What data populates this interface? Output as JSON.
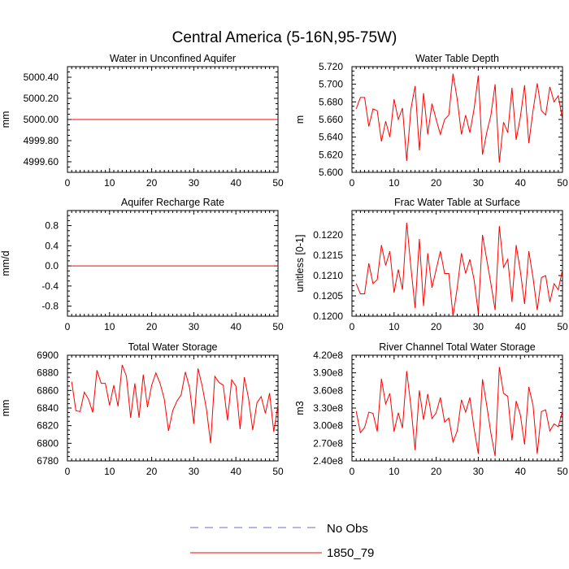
{
  "figure": {
    "title": "Central America (5-16N,95-75W)"
  },
  "legend": {
    "items": [
      {
        "label": "No Obs",
        "color": "#6b6bd6",
        "dash": "dashed"
      },
      {
        "label": "1850_79",
        "color": "#ff0000",
        "dash": "solid"
      }
    ]
  },
  "chart_data": [
    {
      "id": "water-unconfined-aquifer",
      "type": "line",
      "title": "Water in Unconfined Aquifer",
      "xlabel": "",
      "ylabel": "mm",
      "xlim": [
        0,
        50
      ],
      "ylim": [
        4999.5,
        5000.5
      ],
      "xticks": [
        0,
        10,
        20,
        30,
        40,
        50
      ],
      "yticks": [
        4999.6,
        4999.8,
        5000.0,
        5000.2,
        5000.4
      ],
      "ytick_labels": [
        "4999.60",
        "4999.80",
        "5000.00",
        "5000.20",
        "5000.40"
      ],
      "series": [
        {
          "name": "1850_79",
          "color": "#ff0000",
          "x_start": 1,
          "x_end": 50,
          "constant": 5000.0
        }
      ]
    },
    {
      "id": "water-table-depth",
      "type": "line",
      "title": "Water Table Depth",
      "xlabel": "",
      "ylabel": "m",
      "xlim": [
        0,
        50
      ],
      "ylim": [
        5.6,
        5.72
      ],
      "xticks": [
        0,
        10,
        20,
        30,
        40,
        50
      ],
      "yticks": [
        5.6,
        5.62,
        5.64,
        5.66,
        5.68,
        5.7,
        5.72
      ],
      "ytick_labels": [
        "5.600",
        "5.620",
        "5.640",
        "5.660",
        "5.680",
        "5.700",
        "5.720"
      ],
      "series": [
        {
          "name": "1850_79",
          "color": "#ff0000",
          "x_start": 1,
          "values": [
            5.672,
            5.685,
            5.685,
            5.652,
            5.672,
            5.67,
            5.635,
            5.658,
            5.64,
            5.683,
            5.66,
            5.673,
            5.613,
            5.672,
            5.698,
            5.625,
            5.69,
            5.643,
            5.678,
            5.66,
            5.643,
            5.66,
            5.665,
            5.712,
            5.683,
            5.643,
            5.665,
            5.645,
            5.672,
            5.71,
            5.62,
            5.645,
            5.665,
            5.7,
            5.611,
            5.657,
            5.645,
            5.696,
            5.637,
            5.663,
            5.699,
            5.633,
            5.67,
            5.701,
            5.67,
            5.665,
            5.697,
            5.68,
            5.687,
            5.66
          ]
        }
      ]
    },
    {
      "id": "aquifer-recharge-rate",
      "type": "line",
      "title": "Aquifer Recharge Rate",
      "xlabel": "",
      "ylabel": "mm/d",
      "xlim": [
        0,
        50
      ],
      "ylim": [
        -1.0,
        1.1
      ],
      "xticks": [
        0,
        10,
        20,
        30,
        40,
        50
      ],
      "yticks": [
        -0.8,
        -0.4,
        0.0,
        0.4,
        0.8
      ],
      "ytick_labels": [
        "-0.8",
        "-0.4",
        "0.0",
        "0.4",
        "0.8"
      ],
      "series": [
        {
          "name": "1850_79",
          "color": "#ff0000",
          "x_start": 1,
          "x_end": 50,
          "constant": 0.0
        }
      ]
    },
    {
      "id": "frac-water-table-surface",
      "type": "line",
      "title": "Frac Water Table at Surface",
      "xlabel": "",
      "ylabel": "unitless [0-1]",
      "xlim": [
        0,
        50
      ],
      "ylim": [
        0.12,
        0.1226
      ],
      "xticks": [
        0,
        10,
        20,
        30,
        40,
        50
      ],
      "yticks": [
        0.12,
        0.1205,
        0.121,
        0.1215,
        0.122
      ],
      "ytick_labels": [
        "0.1200",
        "0.1205",
        "0.1210",
        "0.1215",
        "0.1220"
      ],
      "series": [
        {
          "name": "1850_79",
          "color": "#ff0000",
          "x_start": 1,
          "values": [
            0.1208,
            0.12055,
            0.12055,
            0.1213,
            0.1208,
            0.1209,
            0.12175,
            0.12125,
            0.1216,
            0.12058,
            0.12115,
            0.12065,
            0.1223,
            0.1212,
            0.1202,
            0.1219,
            0.12025,
            0.12155,
            0.1207,
            0.12115,
            0.1216,
            0.12105,
            0.12105,
            0.12,
            0.1207,
            0.12155,
            0.12105,
            0.1214,
            0.1209,
            0.12008,
            0.122,
            0.1214,
            0.1208,
            0.12015,
            0.12222,
            0.1212,
            0.1214,
            0.12035,
            0.12175,
            0.1211,
            0.1203,
            0.1216,
            0.12095,
            0.12015,
            0.12095,
            0.121,
            0.12035,
            0.1208,
            0.12065,
            0.12115
          ]
        }
      ]
    },
    {
      "id": "total-water-storage",
      "type": "line",
      "title": "Total Water Storage",
      "xlabel": "",
      "ylabel": "mm",
      "xlim": [
        0,
        50
      ],
      "ylim": [
        6780,
        6900
      ],
      "xticks": [
        0,
        10,
        20,
        30,
        40,
        50
      ],
      "yticks": [
        6780,
        6800,
        6820,
        6840,
        6860,
        6880,
        6900
      ],
      "ytick_labels": [
        "6780",
        "6800",
        "6820",
        "6840",
        "6860",
        "6880",
        "6900"
      ],
      "series": [
        {
          "name": "1850_79",
          "color": "#ff0000",
          "x_start": 1,
          "values": [
            6870,
            6837,
            6836,
            6858,
            6850,
            6835,
            6883,
            6868,
            6868,
            6843,
            6866,
            6842,
            6889,
            6876,
            6829,
            6868,
            6829,
            6878,
            6841,
            6866,
            6880,
            6868,
            6850,
            6814,
            6837,
            6848,
            6855,
            6881,
            6863,
            6822,
            6885,
            6865,
            6839,
            6800,
            6876,
            6869,
            6866,
            6826,
            6872,
            6865,
            6816,
            6875,
            6851,
            6815,
            6846,
            6853,
            6834,
            6857,
            6813,
            6844
          ]
        }
      ]
    },
    {
      "id": "river-channel-water-storage",
      "type": "line",
      "title": "River Channel Total Water Storage",
      "xlabel": "",
      "ylabel": "m3",
      "xlim": [
        0,
        50
      ],
      "ylim": [
        240000000,
        420000000
      ],
      "xticks": [
        0,
        10,
        20,
        30,
        40,
        50
      ],
      "yticks": [
        240000000,
        270000000,
        300000000,
        330000000,
        360000000,
        390000000,
        420000000
      ],
      "ytick_labels": [
        "2.40e8",
        "2.70e8",
        "3.00e8",
        "3.30e8",
        "3.60e8",
        "3.90e8",
        "4.20e8"
      ],
      "series": [
        {
          "name": "1850_79",
          "color": "#ff0000",
          "x_start": 1,
          "values": [
            325000000,
            288000000,
            297000000,
            323000000,
            321000000,
            290000000,
            380000000,
            337000000,
            355000000,
            290000000,
            322000000,
            296000000,
            393000000,
            333000000,
            258000000,
            360000000,
            310000000,
            354000000,
            312000000,
            322000000,
            348000000,
            306000000,
            313000000,
            272000000,
            291000000,
            344000000,
            323000000,
            348000000,
            295000000,
            252000000,
            379000000,
            335000000,
            287000000,
            248000000,
            400000000,
            355000000,
            350000000,
            275000000,
            342000000,
            318000000,
            268000000,
            366000000,
            335000000,
            252000000,
            324000000,
            327000000,
            291000000,
            303000000,
            298000000,
            325000000
          ]
        }
      ]
    }
  ]
}
